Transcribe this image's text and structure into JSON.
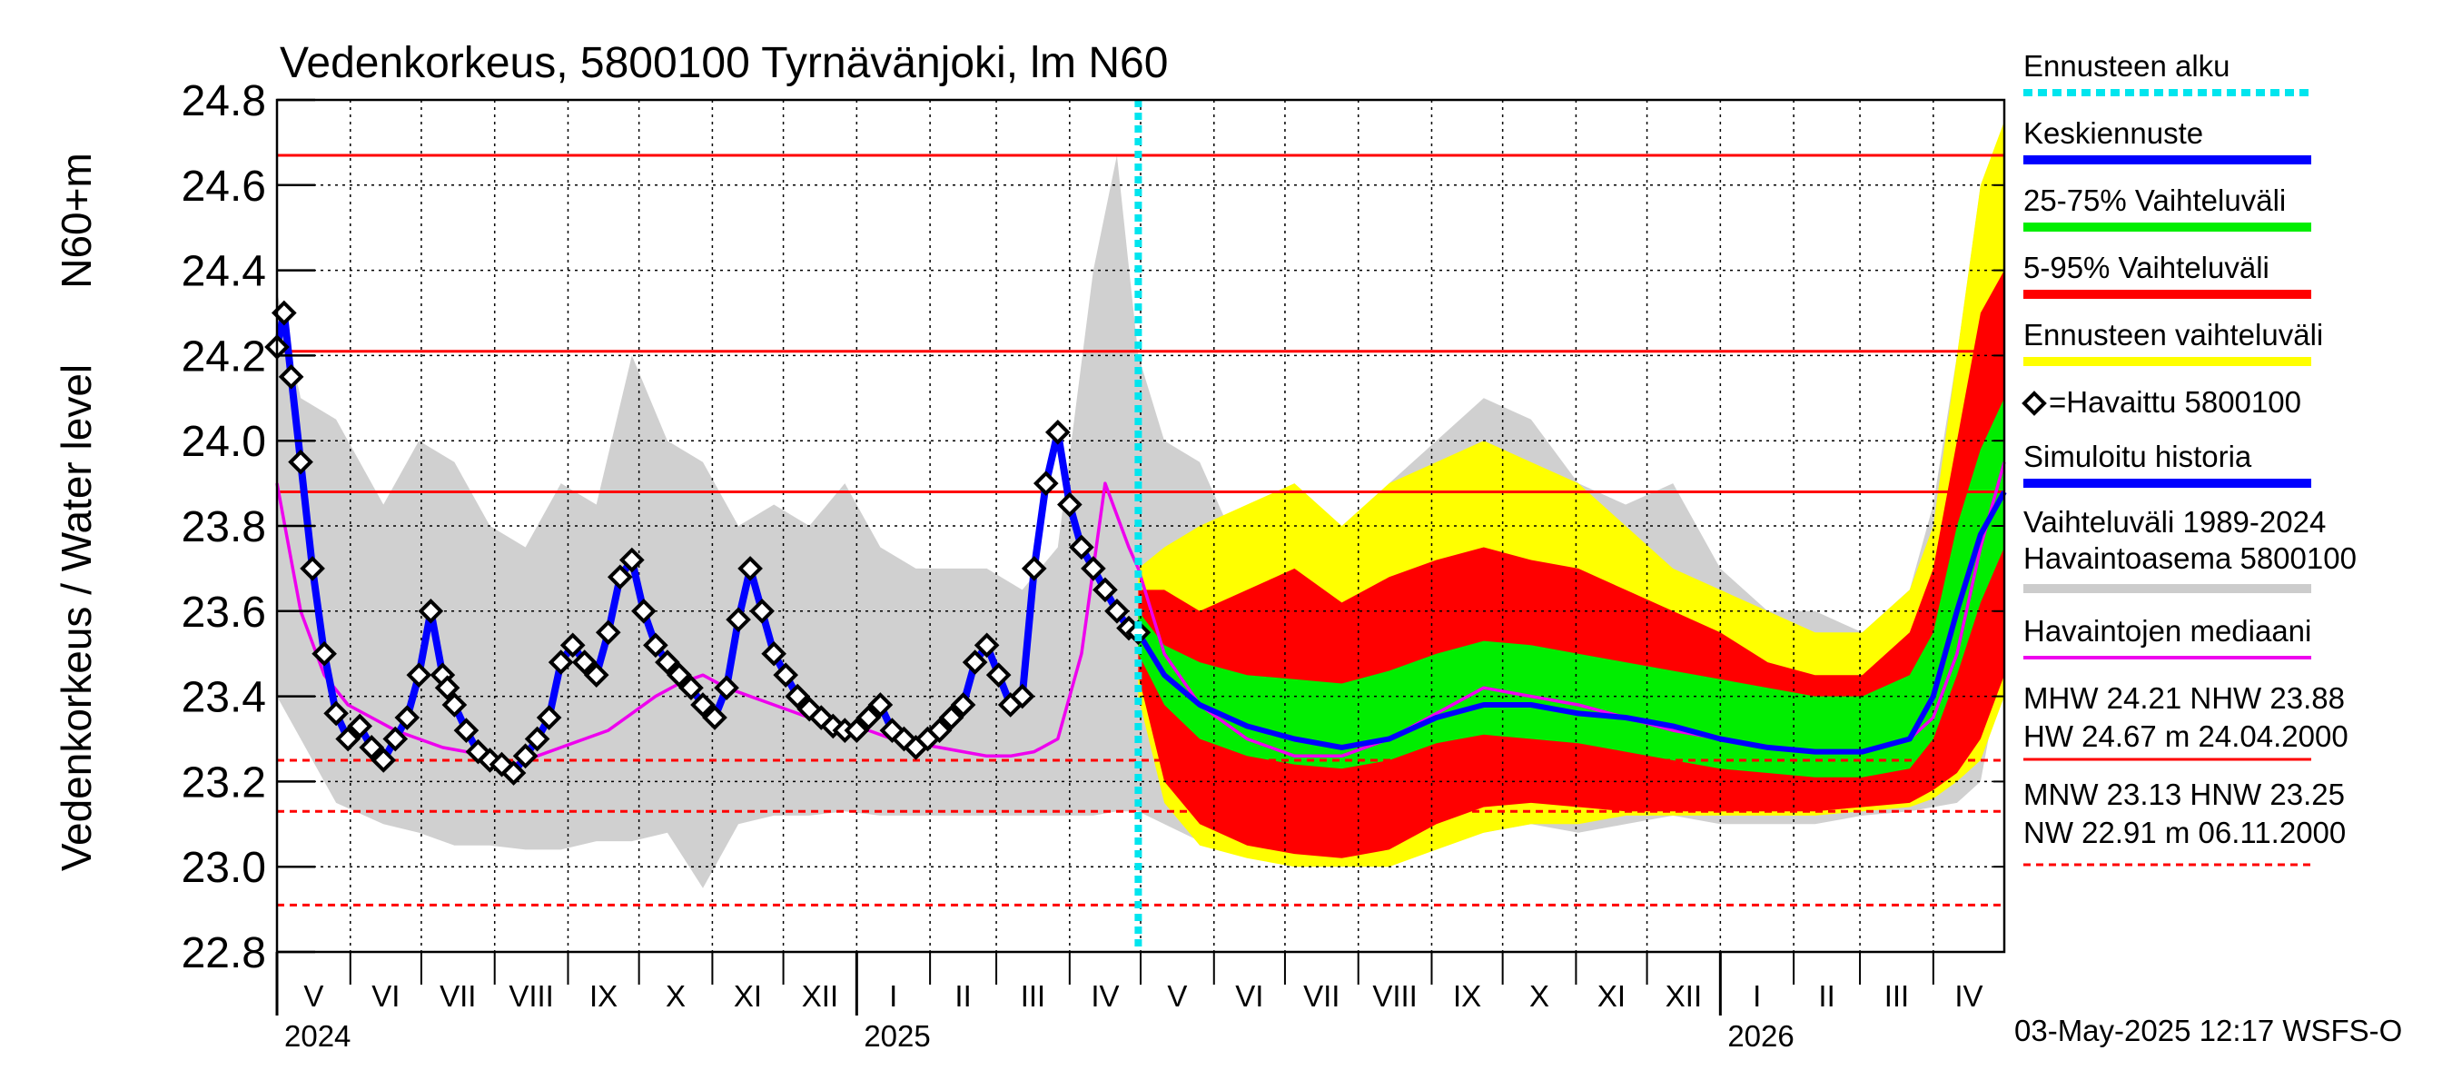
{
  "chart_data": {
    "type": "line",
    "title": "Vedenkorkeus, 5800100 Tyrnävänjoki, lm N60",
    "ylabel_top": "N60+m",
    "ylabel_bottom": "Vedenkorkeus / Water level",
    "ylim": [
      22.8,
      24.8
    ],
    "y_ticks": [
      "24.8",
      "24.6",
      "24.4",
      "24.2",
      "24.0",
      "23.8",
      "23.6",
      "23.4",
      "23.2",
      "23.0",
      "22.8"
    ],
    "x_range_days": [
      0,
      730
    ],
    "forecast_start_day": 364,
    "months": [
      {
        "label": "V",
        "start": 0,
        "end": 31
      },
      {
        "label": "VI",
        "start": 31,
        "end": 61
      },
      {
        "label": "VII",
        "start": 61,
        "end": 92
      },
      {
        "label": "VIII",
        "start": 92,
        "end": 123
      },
      {
        "label": "IX",
        "start": 123,
        "end": 153
      },
      {
        "label": "X",
        "start": 153,
        "end": 184
      },
      {
        "label": "XI",
        "start": 184,
        "end": 214
      },
      {
        "label": "XII",
        "start": 214,
        "end": 245
      },
      {
        "label": "I",
        "start": 245,
        "end": 276
      },
      {
        "label": "II",
        "start": 276,
        "end": 304
      },
      {
        "label": "III",
        "start": 304,
        "end": 335
      },
      {
        "label": "IV",
        "start": 335,
        "end": 365
      },
      {
        "label": "V",
        "start": 365,
        "end": 396
      },
      {
        "label": "VI",
        "start": 396,
        "end": 426
      },
      {
        "label": "VII",
        "start": 426,
        "end": 457
      },
      {
        "label": "VIII",
        "start": 457,
        "end": 488
      },
      {
        "label": "IX",
        "start": 488,
        "end": 518
      },
      {
        "label": "X",
        "start": 518,
        "end": 549
      },
      {
        "label": "XI",
        "start": 549,
        "end": 579
      },
      {
        "label": "XII",
        "start": 579,
        "end": 610
      },
      {
        "label": "I",
        "start": 610,
        "end": 641
      },
      {
        "label": "II",
        "start": 641,
        "end": 669
      },
      {
        "label": "III",
        "start": 669,
        "end": 700
      },
      {
        "label": "IV",
        "start": 700,
        "end": 730
      }
    ],
    "years": [
      {
        "label": "2024",
        "day": 0
      },
      {
        "label": "2025",
        "day": 245
      },
      {
        "label": "2026",
        "day": 610
      }
    ],
    "reference_lines": [
      {
        "name": "HW",
        "value": 24.67,
        "style": "solid"
      },
      {
        "name": "MHW",
        "value": 24.21,
        "style": "solid"
      },
      {
        "name": "NHW",
        "value": 23.88,
        "style": "solid"
      },
      {
        "name": "HNW",
        "value": 23.25,
        "style": "dashed"
      },
      {
        "name": "MNW",
        "value": 23.13,
        "style": "dashed"
      },
      {
        "name": "NW",
        "value": 22.91,
        "style": "dashed"
      }
    ],
    "historical_range": {
      "x": [
        0,
        10,
        25,
        45,
        60,
        75,
        90,
        105,
        120,
        135,
        150,
        165,
        180,
        195,
        210,
        225,
        240,
        255,
        270,
        285,
        300,
        315,
        330,
        345,
        355,
        364,
        375,
        390,
        410,
        430,
        450,
        470,
        490,
        510,
        530,
        550,
        570,
        590,
        610,
        630,
        650,
        670,
        690,
        700,
        710,
        720,
        730
      ],
      "low": [
        23.4,
        23.3,
        23.15,
        23.1,
        23.08,
        23.05,
        23.05,
        23.04,
        23.04,
        23.06,
        23.06,
        23.08,
        22.95,
        23.1,
        23.12,
        23.12,
        23.13,
        23.12,
        23.12,
        23.12,
        23.12,
        23.12,
        23.12,
        23.12,
        23.13,
        23.13,
        23.1,
        23.06,
        23.03,
        23.02,
        23.0,
        23.02,
        23.1,
        23.08,
        23.1,
        23.08,
        23.1,
        23.12,
        23.1,
        23.1,
        23.1,
        23.12,
        23.13,
        23.14,
        23.15,
        23.2,
        23.5
      ],
      "high": [
        24.35,
        24.1,
        24.05,
        23.85,
        24.0,
        23.95,
        23.8,
        23.75,
        23.9,
        23.85,
        24.2,
        24.0,
        23.95,
        23.8,
        23.85,
        23.8,
        23.9,
        23.75,
        23.7,
        23.7,
        23.7,
        23.65,
        23.75,
        24.4,
        24.67,
        24.2,
        24.0,
        23.95,
        23.7,
        23.8,
        23.75,
        23.9,
        24.0,
        24.1,
        24.05,
        23.9,
        23.85,
        23.9,
        23.7,
        23.6,
        23.6,
        23.55,
        23.65,
        23.85,
        24.2,
        24.6,
        24.67
      ]
    },
    "observed": {
      "x": [
        0,
        3,
        6,
        10,
        15,
        20,
        25,
        30,
        35,
        40,
        45,
        50,
        55,
        60,
        65,
        70,
        72,
        75,
        80,
        85,
        90,
        95,
        100,
        105,
        110,
        115,
        120,
        125,
        130,
        135,
        140,
        145,
        150,
        155,
        160,
        165,
        170,
        175,
        180,
        185,
        190,
        195,
        200,
        205,
        210,
        215,
        220,
        225,
        230,
        235,
        240,
        245,
        250,
        255,
        260,
        265,
        270,
        275,
        280,
        285,
        290,
        295,
        300,
        305,
        310,
        315,
        320,
        325,
        330,
        335,
        340,
        345,
        350,
        355,
        360,
        364
      ],
      "y": [
        24.22,
        24.3,
        24.15,
        23.95,
        23.7,
        23.5,
        23.36,
        23.3,
        23.33,
        23.28,
        23.25,
        23.3,
        23.35,
        23.45,
        23.6,
        23.45,
        23.42,
        23.38,
        23.32,
        23.27,
        23.25,
        23.24,
        23.22,
        23.26,
        23.3,
        23.35,
        23.48,
        23.52,
        23.48,
        23.45,
        23.55,
        23.68,
        23.72,
        23.6,
        23.52,
        23.48,
        23.45,
        23.42,
        23.38,
        23.35,
        23.42,
        23.58,
        23.7,
        23.6,
        23.5,
        23.45,
        23.4,
        23.37,
        23.35,
        23.33,
        23.32,
        23.32,
        23.35,
        23.38,
        23.32,
        23.3,
        23.28,
        23.3,
        23.32,
        23.35,
        23.38,
        23.48,
        23.52,
        23.45,
        23.38,
        23.4,
        23.7,
        23.9,
        24.02,
        23.85,
        23.75,
        23.7,
        23.65,
        23.6,
        23.56,
        23.55
      ]
    },
    "median": {
      "x": [
        0,
        10,
        20,
        30,
        40,
        50,
        60,
        70,
        80,
        90,
        100,
        110,
        120,
        130,
        140,
        150,
        160,
        170,
        180,
        190,
        200,
        210,
        220,
        230,
        240,
        250,
        260,
        270,
        280,
        290,
        300,
        310,
        320,
        330,
        340,
        350,
        360,
        364,
        375,
        390,
        410,
        430,
        450,
        470,
        490,
        510,
        530,
        550,
        570,
        590,
        610,
        630,
        650,
        670,
        690,
        700,
        710,
        720,
        730
      ],
      "y": [
        23.9,
        23.6,
        23.45,
        23.38,
        23.35,
        23.32,
        23.3,
        23.28,
        23.27,
        23.25,
        23.24,
        23.26,
        23.28,
        23.3,
        23.32,
        23.36,
        23.4,
        23.43,
        23.45,
        23.42,
        23.4,
        23.38,
        23.36,
        23.34,
        23.33,
        23.32,
        23.3,
        23.29,
        23.28,
        23.27,
        23.26,
        23.26,
        23.27,
        23.3,
        23.5,
        23.9,
        23.75,
        23.7,
        23.5,
        23.38,
        23.3,
        23.26,
        23.26,
        23.3,
        23.36,
        23.42,
        23.4,
        23.38,
        23.35,
        23.32,
        23.3,
        23.28,
        23.27,
        23.27,
        23.3,
        23.35,
        23.5,
        23.75,
        23.95
      ]
    },
    "forecast": {
      "x": [
        364,
        375,
        390,
        410,
        430,
        450,
        470,
        490,
        510,
        530,
        550,
        570,
        590,
        610,
        630,
        650,
        670,
        690,
        700,
        710,
        720,
        730
      ],
      "mean": [
        23.55,
        23.45,
        23.38,
        23.33,
        23.3,
        23.28,
        23.3,
        23.35,
        23.38,
        23.38,
        23.36,
        23.35,
        23.33,
        23.3,
        23.28,
        23.27,
        23.27,
        23.3,
        23.4,
        23.6,
        23.78,
        23.88
      ],
      "p25": [
        23.5,
        23.38,
        23.3,
        23.26,
        23.24,
        23.23,
        23.25,
        23.29,
        23.31,
        23.3,
        23.29,
        23.27,
        23.25,
        23.23,
        23.22,
        23.21,
        23.21,
        23.23,
        23.3,
        23.45,
        23.62,
        23.75
      ],
      "p75": [
        23.6,
        23.52,
        23.48,
        23.45,
        23.44,
        23.43,
        23.46,
        23.5,
        23.53,
        23.52,
        23.5,
        23.48,
        23.46,
        23.44,
        23.42,
        23.4,
        23.4,
        23.45,
        23.55,
        23.8,
        23.98,
        24.1
      ],
      "p5": [
        23.45,
        23.2,
        23.1,
        23.05,
        23.03,
        23.02,
        23.04,
        23.1,
        23.14,
        23.15,
        23.14,
        23.13,
        23.13,
        23.13,
        23.13,
        23.13,
        23.14,
        23.15,
        23.18,
        23.22,
        23.3,
        23.45
      ],
      "p95": [
        23.65,
        23.65,
        23.6,
        23.65,
        23.7,
        23.62,
        23.68,
        23.72,
        23.75,
        23.72,
        23.7,
        23.65,
        23.6,
        23.55,
        23.48,
        23.45,
        23.45,
        23.55,
        23.7,
        24.0,
        24.3,
        24.4
      ],
      "min": [
        23.4,
        23.15,
        23.05,
        23.02,
        23.0,
        23.0,
        23.0,
        23.04,
        23.08,
        23.1,
        23.1,
        23.12,
        23.12,
        23.12,
        23.12,
        23.12,
        23.13,
        23.14,
        23.16,
        23.2,
        23.25,
        23.4
      ],
      "max": [
        23.7,
        23.75,
        23.8,
        23.85,
        23.9,
        23.8,
        23.9,
        23.95,
        24.0,
        23.95,
        23.9,
        23.8,
        23.7,
        23.65,
        23.6,
        23.55,
        23.55,
        23.65,
        23.8,
        24.2,
        24.6,
        24.75
      ]
    },
    "legend": [
      {
        "label": "Ennusteen alku",
        "color": "#00e5ee",
        "kind": "dotted"
      },
      {
        "label": "Keskiennuste",
        "color": "#0000ff",
        "kind": "bar"
      },
      {
        "label": "25-75% Vaihteluväli",
        "color": "#00ee00",
        "kind": "bar"
      },
      {
        "label": "5-95% Vaihteluväli",
        "color": "#ff0000",
        "kind": "bar"
      },
      {
        "label": "Ennusteen vaihteluväli",
        "color": "#ffff00",
        "kind": "bar"
      },
      {
        "label": "=Havaittu 5800100",
        "color": "#000000",
        "kind": "diamond"
      },
      {
        "label": "Simuloitu historia",
        "color": "#0000ff",
        "kind": "bar"
      },
      {
        "label": "Vaihteluväli 1989-2024",
        "label2": " Havaintoasema 5800100",
        "color": "#cccccc",
        "kind": "bar"
      },
      {
        "label": "Havaintojen mediaani",
        "color": "#ee00ee",
        "kind": "line"
      }
    ],
    "stats": {
      "line1": "MHW  24.21 NHW  23.88",
      "line2": "HW  24.67 m 24.04.2000",
      "line3": "MNW  23.13 HNW  23.25",
      "line4": "NW  22.91 m 06.11.2000"
    },
    "footer": "03-May-2025 12:17 WSFS-O"
  },
  "colors": {
    "grid": "#000000",
    "reference": "#ff0000",
    "historical": "#d0d0d0",
    "forecast_max": "#ffff00",
    "forecast_5_95": "#ff0000",
    "forecast_25_75": "#00ee00",
    "forecast_mean": "#0000ff",
    "median": "#ee00ee",
    "observed": "#000000",
    "forecast_start": "#00e5ee"
  }
}
